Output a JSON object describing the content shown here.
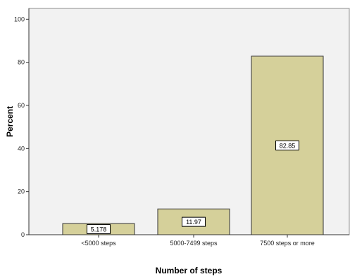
{
  "chart_data": {
    "type": "bar",
    "title": "",
    "xlabel": "Number of steps",
    "ylabel": "Percent",
    "categories": [
      "<5000 steps",
      "5000-7499 steps",
      "7500 steps or more"
    ],
    "values": [
      5.178,
      11.97,
      82.85
    ],
    "data_labels": [
      "5.178",
      "11.97",
      "82.85"
    ],
    "ylim": [
      0,
      105
    ],
    "yticks": [
      0,
      20,
      40,
      60,
      80,
      100
    ],
    "grid": false,
    "legend": "none",
    "colors": {
      "bar_fill": "#d5d09a",
      "bar_stroke": "#333333",
      "plot_background": "#f2f2f2",
      "plot_border": "#8c8c8c"
    }
  }
}
